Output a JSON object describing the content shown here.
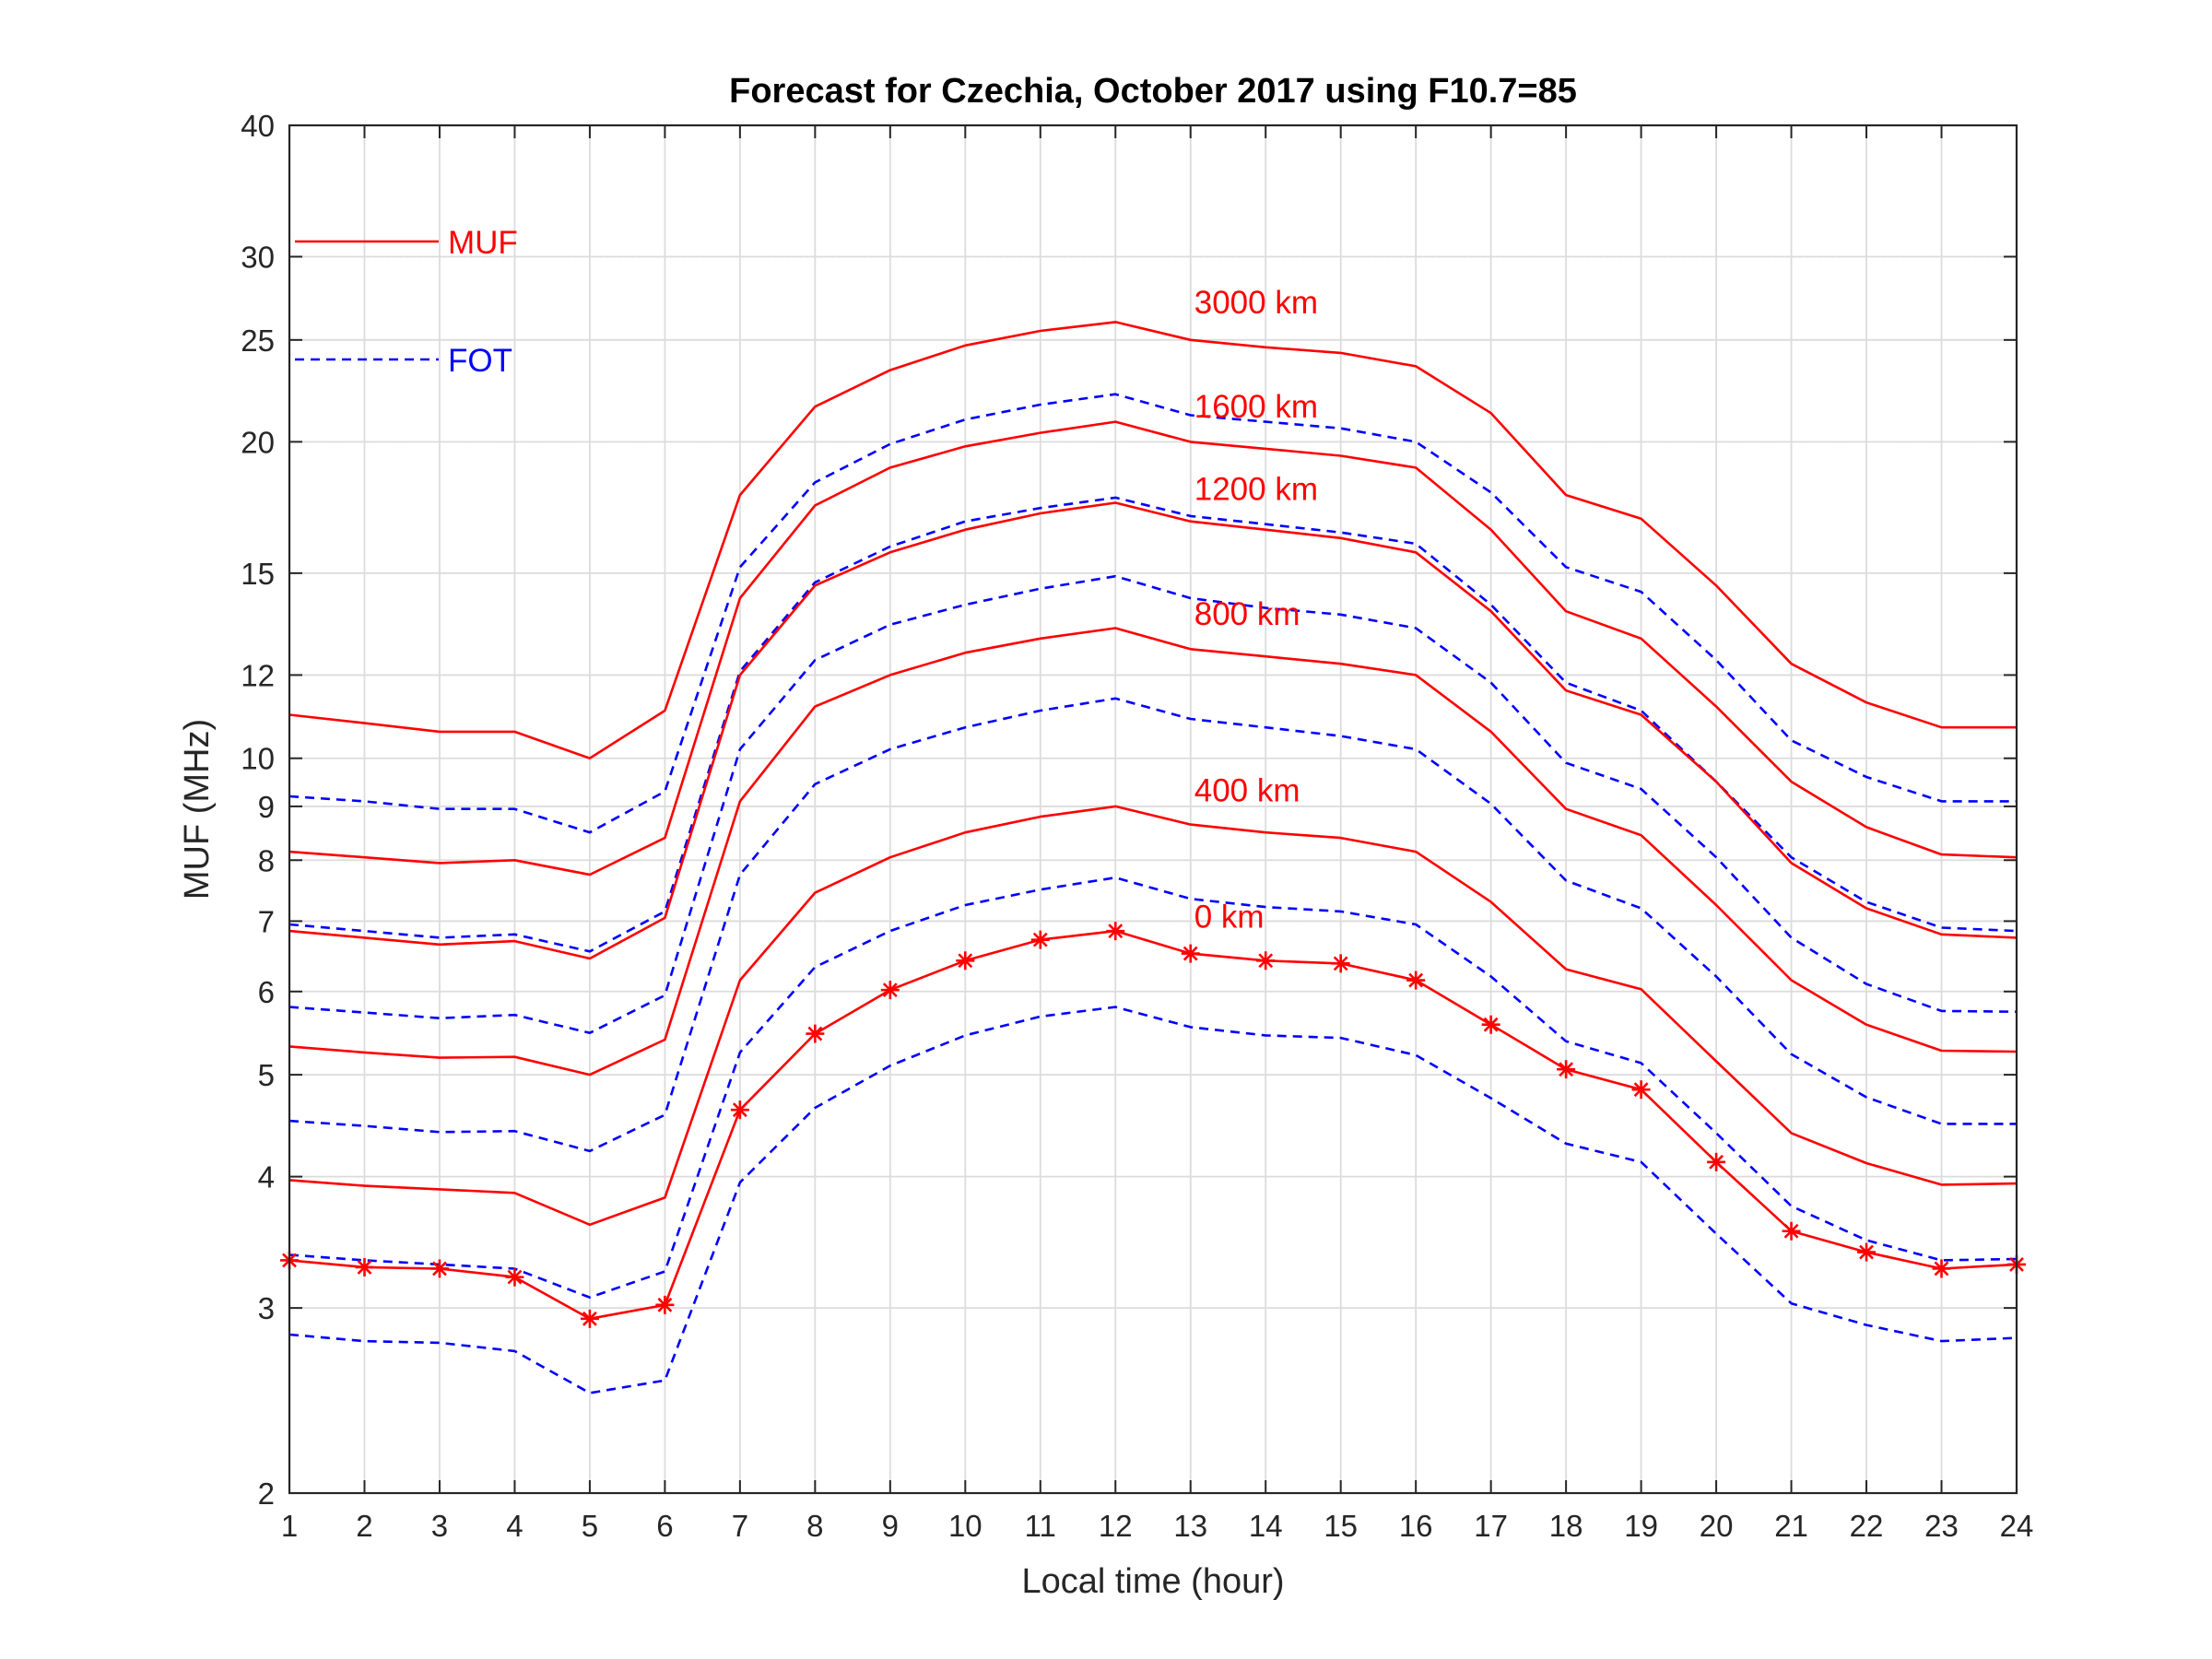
{
  "chart_data": {
    "type": "line",
    "title": "Forecast for Czechia, October 2017 using F10.7=85",
    "xlabel": "Local time (hour)",
    "ylabel": "MUF (MHz)",
    "yscale": "log",
    "xlim": [
      1,
      24
    ],
    "ylim": [
      2,
      40
    ],
    "grid": true,
    "minor_grid": true,
    "x_ticks": [
      "1",
      "2",
      "3",
      "4",
      "5",
      "6",
      "7",
      "8",
      "9",
      "10",
      "11",
      "12",
      "13",
      "14",
      "15",
      "16",
      "17",
      "18",
      "19",
      "20",
      "21",
      "22",
      "23",
      "24"
    ],
    "y_ticks": [
      "2",
      "3",
      "4",
      "5",
      "6",
      "7",
      "8",
      "9",
      "10",
      "12",
      "15",
      "20",
      "25",
      "30",
      "40"
    ],
    "x": [
      1,
      2,
      3,
      4,
      5,
      6,
      7,
      8,
      9,
      10,
      11,
      12,
      13,
      14,
      15,
      16,
      17,
      18,
      19,
      20,
      21,
      22,
      23,
      24
    ],
    "legend": [
      {
        "label": "MUF",
        "color": "#ff0000",
        "style": "solid"
      },
      {
        "label": "FOT",
        "color": "#0000ff",
        "style": "dashed"
      }
    ],
    "series": [
      {
        "name": "MUF",
        "distance": "3000 km",
        "color": "#ff0000",
        "style": "solid",
        "values": [
          11.0,
          10.8,
          10.6,
          10.6,
          10.0,
          11.1,
          17.8,
          21.6,
          23.4,
          24.7,
          25.5,
          26.0,
          25.0,
          24.6,
          24.3,
          23.6,
          21.3,
          17.8,
          16.9,
          14.6,
          12.3,
          11.3,
          10.7,
          10.7
        ]
      },
      {
        "name": "FOT",
        "distance": "3000 km",
        "color": "#0000ff",
        "style": "dashed",
        "values": [
          9.2,
          9.1,
          8.95,
          8.95,
          8.5,
          9.3,
          15.2,
          18.3,
          19.9,
          21.0,
          21.7,
          22.2,
          21.2,
          20.9,
          20.6,
          20.0,
          17.9,
          15.2,
          14.4,
          12.4,
          10.4,
          9.6,
          9.1,
          9.1
        ]
      },
      {
        "name": "MUF",
        "distance": "1600 km",
        "color": "#ff0000",
        "style": "solid",
        "values": [
          8.15,
          8.05,
          7.95,
          8.0,
          7.75,
          8.4,
          14.2,
          17.4,
          18.9,
          19.8,
          20.4,
          20.9,
          20.0,
          19.7,
          19.4,
          18.9,
          16.5,
          13.8,
          13.0,
          11.2,
          9.5,
          8.6,
          8.1,
          8.05
        ]
      },
      {
        "name": "FOT",
        "distance": "1600 km",
        "color": "#0000ff",
        "style": "dashed",
        "values": [
          6.95,
          6.85,
          6.75,
          6.8,
          6.55,
          7.15,
          12.1,
          14.7,
          15.9,
          16.8,
          17.3,
          17.7,
          17.0,
          16.7,
          16.4,
          16.0,
          14.0,
          11.8,
          11.1,
          9.5,
          8.05,
          7.3,
          6.9,
          6.85
        ]
      },
      {
        "name": "MUF",
        "distance": "1200 km",
        "color": "#ff0000",
        "style": "solid",
        "values": [
          6.85,
          6.75,
          6.65,
          6.7,
          6.45,
          7.05,
          12.0,
          14.6,
          15.7,
          16.5,
          17.1,
          17.5,
          16.8,
          16.5,
          16.2,
          15.7,
          13.8,
          11.6,
          11.0,
          9.5,
          7.95,
          7.2,
          6.8,
          6.75
        ]
      },
      {
        "name": "FOT",
        "distance": "1200 km",
        "color": "#0000ff",
        "style": "dashed",
        "values": [
          5.8,
          5.73,
          5.66,
          5.7,
          5.48,
          5.95,
          10.2,
          12.4,
          13.4,
          14.0,
          14.5,
          14.9,
          14.2,
          13.9,
          13.7,
          13.3,
          11.8,
          9.9,
          9.35,
          8.05,
          6.75,
          6.1,
          5.75,
          5.74
        ]
      },
      {
        "name": "MUF",
        "distance": "800 km",
        "color": "#ff0000",
        "style": "solid",
        "values": [
          5.32,
          5.25,
          5.19,
          5.2,
          5.0,
          5.4,
          9.1,
          11.2,
          12.0,
          12.6,
          13.0,
          13.3,
          12.7,
          12.5,
          12.3,
          12.0,
          10.6,
          8.95,
          8.45,
          7.25,
          6.15,
          5.58,
          5.27,
          5.26
        ]
      },
      {
        "name": "FOT",
        "distance": "800 km",
        "color": "#0000ff",
        "style": "dashed",
        "values": [
          4.52,
          4.47,
          4.41,
          4.42,
          4.23,
          4.58,
          7.75,
          9.45,
          10.2,
          10.7,
          11.1,
          11.4,
          10.9,
          10.7,
          10.5,
          10.2,
          9.05,
          7.65,
          7.2,
          6.2,
          5.23,
          4.76,
          4.49,
          4.49
        ]
      },
      {
        "name": "MUF",
        "distance": "400 km",
        "color": "#ff0000",
        "style": "solid",
        "values": [
          3.97,
          3.92,
          3.89,
          3.86,
          3.6,
          3.82,
          6.15,
          7.45,
          8.05,
          8.5,
          8.8,
          9.0,
          8.65,
          8.5,
          8.4,
          8.15,
          7.3,
          6.3,
          6.03,
          5.15,
          4.4,
          4.12,
          3.93,
          3.94
        ]
      },
      {
        "name": "FOT",
        "distance": "400 km",
        "color": "#0000ff",
        "style": "dashed",
        "values": [
          3.37,
          3.33,
          3.3,
          3.27,
          3.07,
          3.25,
          5.25,
          6.33,
          6.85,
          7.25,
          7.5,
          7.7,
          7.35,
          7.22,
          7.15,
          6.95,
          6.2,
          5.38,
          5.13,
          4.4,
          3.75,
          3.48,
          3.33,
          3.34
        ]
      },
      {
        "name": "MUF",
        "distance": "0 km",
        "color": "#ff0000",
        "style": "solid",
        "marker": "asterisk",
        "values": [
          3.33,
          3.28,
          3.27,
          3.21,
          2.93,
          3.02,
          4.63,
          5.47,
          6.02,
          6.42,
          6.72,
          6.85,
          6.52,
          6.42,
          6.38,
          6.15,
          5.58,
          5.06,
          4.84,
          4.13,
          3.55,
          3.39,
          3.27,
          3.3
        ]
      },
      {
        "name": "FOT",
        "distance": "0 km",
        "color": "#0000ff",
        "style": "dashed",
        "values": [
          2.83,
          2.79,
          2.78,
          2.73,
          2.49,
          2.56,
          3.95,
          4.65,
          5.1,
          5.45,
          5.68,
          5.8,
          5.55,
          5.45,
          5.42,
          5.22,
          4.75,
          4.3,
          4.13,
          3.53,
          3.03,
          2.89,
          2.79,
          2.81
        ]
      }
    ],
    "annotations": [
      {
        "text": "3000 km",
        "x": 13,
        "y": 26.5
      },
      {
        "text": "1600 km",
        "x": 13,
        "y": 21.1
      },
      {
        "text": "1200 km",
        "x": 13,
        "y": 17.6
      },
      {
        "text": "800 km",
        "x": 13,
        "y": 13.4
      },
      {
        "text": "400 km",
        "x": 13,
        "y": 9.1
      },
      {
        "text": "0 km",
        "x": 13,
        "y": 6.9
      }
    ]
  }
}
